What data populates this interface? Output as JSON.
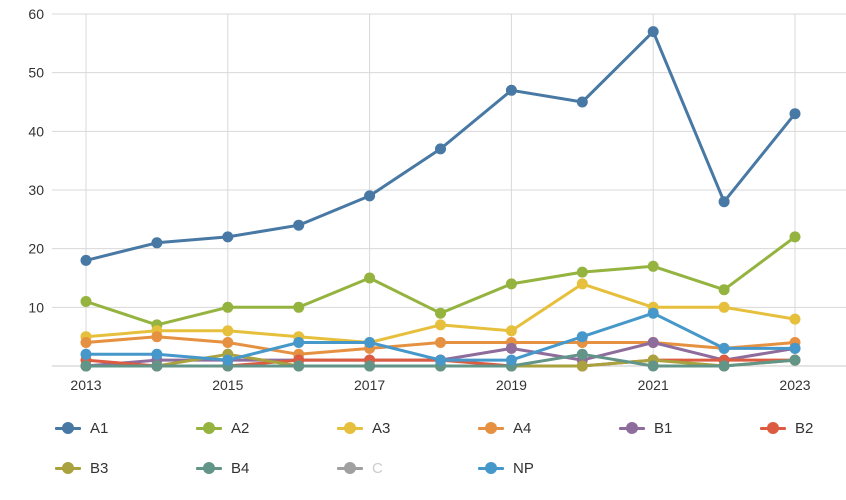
{
  "chart_data": {
    "type": "line",
    "title": "",
    "xlabel": "",
    "ylabel": "",
    "x": [
      2013,
      2014,
      2015,
      2016,
      2017,
      2018,
      2019,
      2020,
      2021,
      2022,
      2023
    ],
    "x_axis": {
      "tick_years": [
        2013,
        2015,
        2017,
        2019,
        2021,
        2023
      ],
      "tick_labels": [
        "2013",
        "2015",
        "2017",
        "2019",
        "2021",
        "2023"
      ],
      "grid": true
    },
    "y_axis": {
      "ticks": [
        10,
        20,
        30,
        40,
        50,
        60
      ],
      "tick_labels": [
        "10",
        "20",
        "30",
        "40",
        "50",
        "60"
      ],
      "range": [
        0,
        60
      ],
      "grid": true
    },
    "series": [
      {
        "id": "A1",
        "label": "A1",
        "color": "#4878a4",
        "visible": true,
        "values": [
          18,
          21,
          22,
          24,
          29,
          37,
          47,
          45,
          57,
          28,
          43
        ]
      },
      {
        "id": "A2",
        "label": "A2",
        "color": "#94b33f",
        "visible": true,
        "values": [
          11,
          7,
          10,
          10,
          15,
          9,
          14,
          16,
          17,
          13,
          22
        ]
      },
      {
        "id": "A3",
        "label": "A3",
        "color": "#e6c03c",
        "visible": true,
        "values": [
          5,
          6,
          6,
          5,
          4,
          7,
          6,
          14,
          10,
          10,
          8
        ]
      },
      {
        "id": "A4",
        "label": "A4",
        "color": "#e59141",
        "visible": true,
        "values": [
          4,
          5,
          4,
          2,
          3,
          4,
          4,
          4,
          4,
          3,
          4
        ]
      },
      {
        "id": "B1",
        "label": "B1",
        "color": "#8e6d9d",
        "visible": true,
        "values": [
          0,
          1,
          1,
          1,
          1,
          1,
          3,
          1,
          4,
          1,
          3
        ]
      },
      {
        "id": "B2",
        "label": "B2",
        "color": "#dc5c41",
        "visible": true,
        "values": [
          1,
          0,
          0,
          1,
          1,
          1,
          0,
          0,
          1,
          1,
          1
        ]
      },
      {
        "id": "B3",
        "label": "B3",
        "color": "#a9a23e",
        "visible": true,
        "values": [
          0,
          0,
          2,
          0,
          0,
          0,
          0,
          0,
          1,
          0,
          1
        ]
      },
      {
        "id": "B4",
        "label": "B4",
        "color": "#629488",
        "visible": true,
        "values": [
          0,
          0,
          0,
          0,
          0,
          0,
          0,
          2,
          0,
          0,
          1
        ]
      },
      {
        "id": "C",
        "label": "C",
        "color": "#a0a0a0",
        "visible": false,
        "values": []
      },
      {
        "id": "NP",
        "label": "NP",
        "color": "#4697ca",
        "visible": true,
        "values": [
          2,
          2,
          1,
          4,
          4,
          1,
          1,
          5,
          9,
          3,
          3
        ]
      }
    ],
    "legend": {
      "position": "bottom",
      "rows": [
        [
          "A1",
          "A2",
          "A3",
          "A4",
          "B1",
          "B2"
        ],
        [
          "B3",
          "B4",
          "C",
          "NP"
        ]
      ]
    }
  },
  "style": {
    "grid_color": "#d8d8d8",
    "axis_line_color": "#c9c9c9",
    "tick_text_color": "#333333",
    "legend_text_color": "#333333",
    "legend_muted_text_color": "#cccccc",
    "background": "#ffffff",
    "line_width": 3,
    "marker_radius": 5.5
  }
}
